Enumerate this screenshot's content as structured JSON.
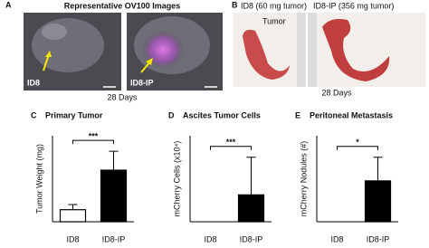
{
  "panels": {
    "a": {
      "letter": "A",
      "title": "Representative OV100 Images",
      "images": [
        "ID8",
        "ID8-IP"
      ],
      "caption": "28 Days"
    },
    "b": {
      "letter": "B",
      "images": [
        "ID8 (60 mg tumor)",
        "ID8-IP (356 mg tumor)"
      ],
      "annotation": "Tumor",
      "caption": "28 Days"
    }
  },
  "chart_data": [
    {
      "type": "bar",
      "letter": "C",
      "title": "Primary Tumor",
      "y_label": "Tumor Weight (mg)",
      "categories": [
        "ID8",
        "ID8-IP"
      ],
      "values": [
        70,
        300
      ],
      "errors": [
        30,
        110
      ],
      "colors": [
        "#ffffff",
        "#000000"
      ],
      "ylim": [
        0,
        500
      ],
      "annotation": "***"
    },
    {
      "type": "bar",
      "letter": "D",
      "title": "Ascites Tumor Cells",
      "y_label": "mCherry Cells (x10⁴)",
      "categories": [
        "ID8",
        "ID8-IP"
      ],
      "values": [
        0,
        2.5
      ],
      "errors": [
        0,
        3.5
      ],
      "colors": [
        "#ffffff",
        "#000000"
      ],
      "ylim": [
        0,
        8
      ],
      "annotation": "***"
    },
    {
      "type": "bar",
      "letter": "E",
      "title": "Peritoneal Metastasis",
      "y_label": "mCherry Nodules (#)",
      "categories": [
        "ID8",
        "ID8-IP"
      ],
      "values": [
        0,
        3.8
      ],
      "errors": [
        0,
        2.2
      ],
      "colors": [
        "#ffffff",
        "#000000"
      ],
      "ylim": [
        0,
        8
      ],
      "annotation": "*"
    }
  ]
}
